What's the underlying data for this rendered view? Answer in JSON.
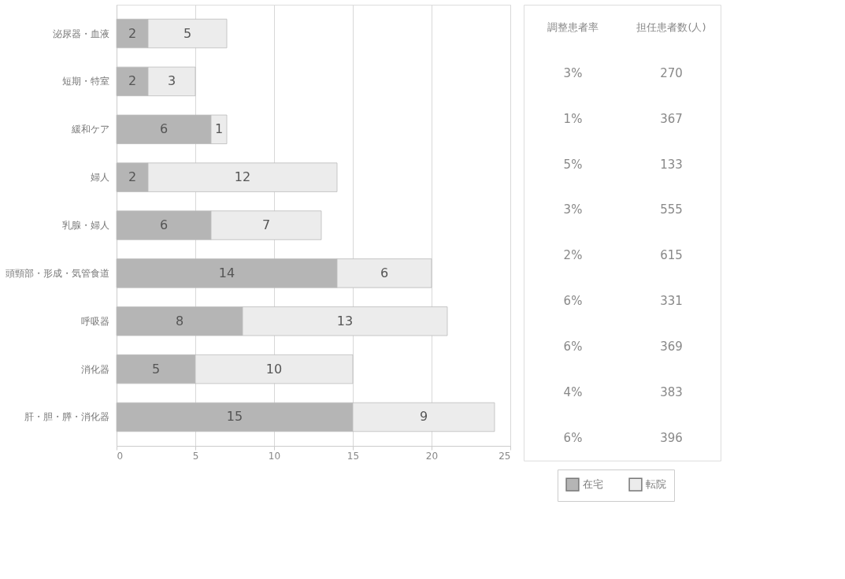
{
  "chart_data": {
    "type": "bar",
    "orientation": "horizontal",
    "stacked": true,
    "categories": [
      "泌尿器・血液",
      "短期・特室",
      "緩和ケア",
      "婦人",
      "乳腺・婦人",
      "頭頸部・形成・気管食道",
      "呼吸器",
      "消化器",
      "肝・胆・膵・消化器"
    ],
    "series": [
      {
        "name": "在宅",
        "color": "#b5b5b5",
        "values": [
          2,
          2,
          6,
          2,
          6,
          14,
          8,
          5,
          15
        ]
      },
      {
        "name": "転院",
        "color": "#ececec",
        "values": [
          5,
          3,
          1,
          12,
          7,
          6,
          13,
          10,
          9
        ]
      }
    ],
    "xlim": [
      0,
      25
    ],
    "xticks": [
      0,
      5,
      10,
      15,
      20,
      25
    ],
    "grid": "x",
    "legend": "bottom right",
    "data_labels": true,
    "annotations": [
      "調整患者率",
      "担任患者数(人)",
      "3%",
      "270",
      "1%",
      "367",
      "5%",
      "133",
      "3%",
      "555",
      "2%",
      "615",
      "6%",
      "331",
      "6%",
      "369",
      "4%",
      "383",
      "6%",
      "396"
    ]
  }
}
